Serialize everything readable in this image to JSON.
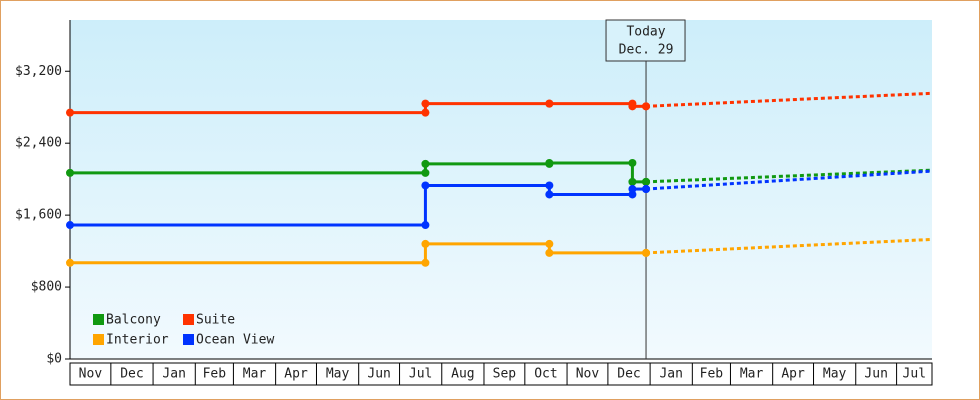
{
  "chart_data": {
    "type": "step-line",
    "ylim": [
      0,
      3770
    ],
    "yticks": [
      {
        "value": 0,
        "label": "$0"
      },
      {
        "value": 800,
        "label": "$800"
      },
      {
        "value": 1600,
        "label": "$1,600"
      },
      {
        "value": 2400,
        "label": "$2,400"
      },
      {
        "value": 3200,
        "label": "$3,200"
      }
    ],
    "xlim": [
      0,
      633
    ],
    "xticks": [
      {
        "value": 0,
        "label": "Nov"
      },
      {
        "value": 30,
        "label": "Dec"
      },
      {
        "value": 61,
        "label": "Jan"
      },
      {
        "value": 92,
        "label": "Feb"
      },
      {
        "value": 120,
        "label": "Mar"
      },
      {
        "value": 151,
        "label": "Apr"
      },
      {
        "value": 181,
        "label": "May"
      },
      {
        "value": 212,
        "label": "Jun"
      },
      {
        "value": 242,
        "label": "Jul"
      },
      {
        "value": 273,
        "label": "Aug"
      },
      {
        "value": 304,
        "label": "Sep"
      },
      {
        "value": 334,
        "label": "Oct"
      },
      {
        "value": 365,
        "label": "Nov"
      },
      {
        "value": 395,
        "label": "Dec"
      },
      {
        "value": 426,
        "label": "Jan"
      },
      {
        "value": 457,
        "label": "Feb"
      },
      {
        "value": 485,
        "label": "Mar"
      },
      {
        "value": 516,
        "label": "Apr"
      },
      {
        "value": 546,
        "label": "May"
      },
      {
        "value": 577,
        "label": "Jun"
      },
      {
        "value": 607,
        "label": "Jul"
      }
    ],
    "annotation": {
      "x": 423,
      "lines": [
        "Today",
        "Dec. 29"
      ]
    },
    "legend": "lower-left",
    "series": [
      {
        "name": "Balcony",
        "color": "#119911",
        "x": [
          0,
          261,
          352,
          413,
          423
        ],
        "values": [
          2070,
          2170,
          2180,
          1970,
          1970
        ],
        "forecast_x": [
          423,
          633
        ],
        "forecast_values": [
          1970,
          2100
        ]
      },
      {
        "name": "Suite",
        "color": "#ff3300",
        "x": [
          0,
          261,
          352,
          413,
          423
        ],
        "values": [
          2740,
          2840,
          2840,
          2810,
          2810
        ],
        "forecast_x": [
          423,
          633
        ],
        "forecast_values": [
          2810,
          2955
        ]
      },
      {
        "name": "Interior",
        "color": "#ffa500",
        "x": [
          0,
          261,
          352,
          423
        ],
        "values": [
          1070,
          1280,
          1180,
          1180
        ],
        "forecast_x": [
          423,
          633
        ],
        "forecast_values": [
          1180,
          1330
        ]
      },
      {
        "name": "Ocean View",
        "color": "#0033ff",
        "x": [
          0,
          261,
          352,
          413,
          423
        ],
        "values": [
          1490,
          1930,
          1830,
          1890,
          1890
        ],
        "forecast_x": [
          423,
          633
        ],
        "forecast_values": [
          1890,
          2090
        ]
      }
    ]
  }
}
